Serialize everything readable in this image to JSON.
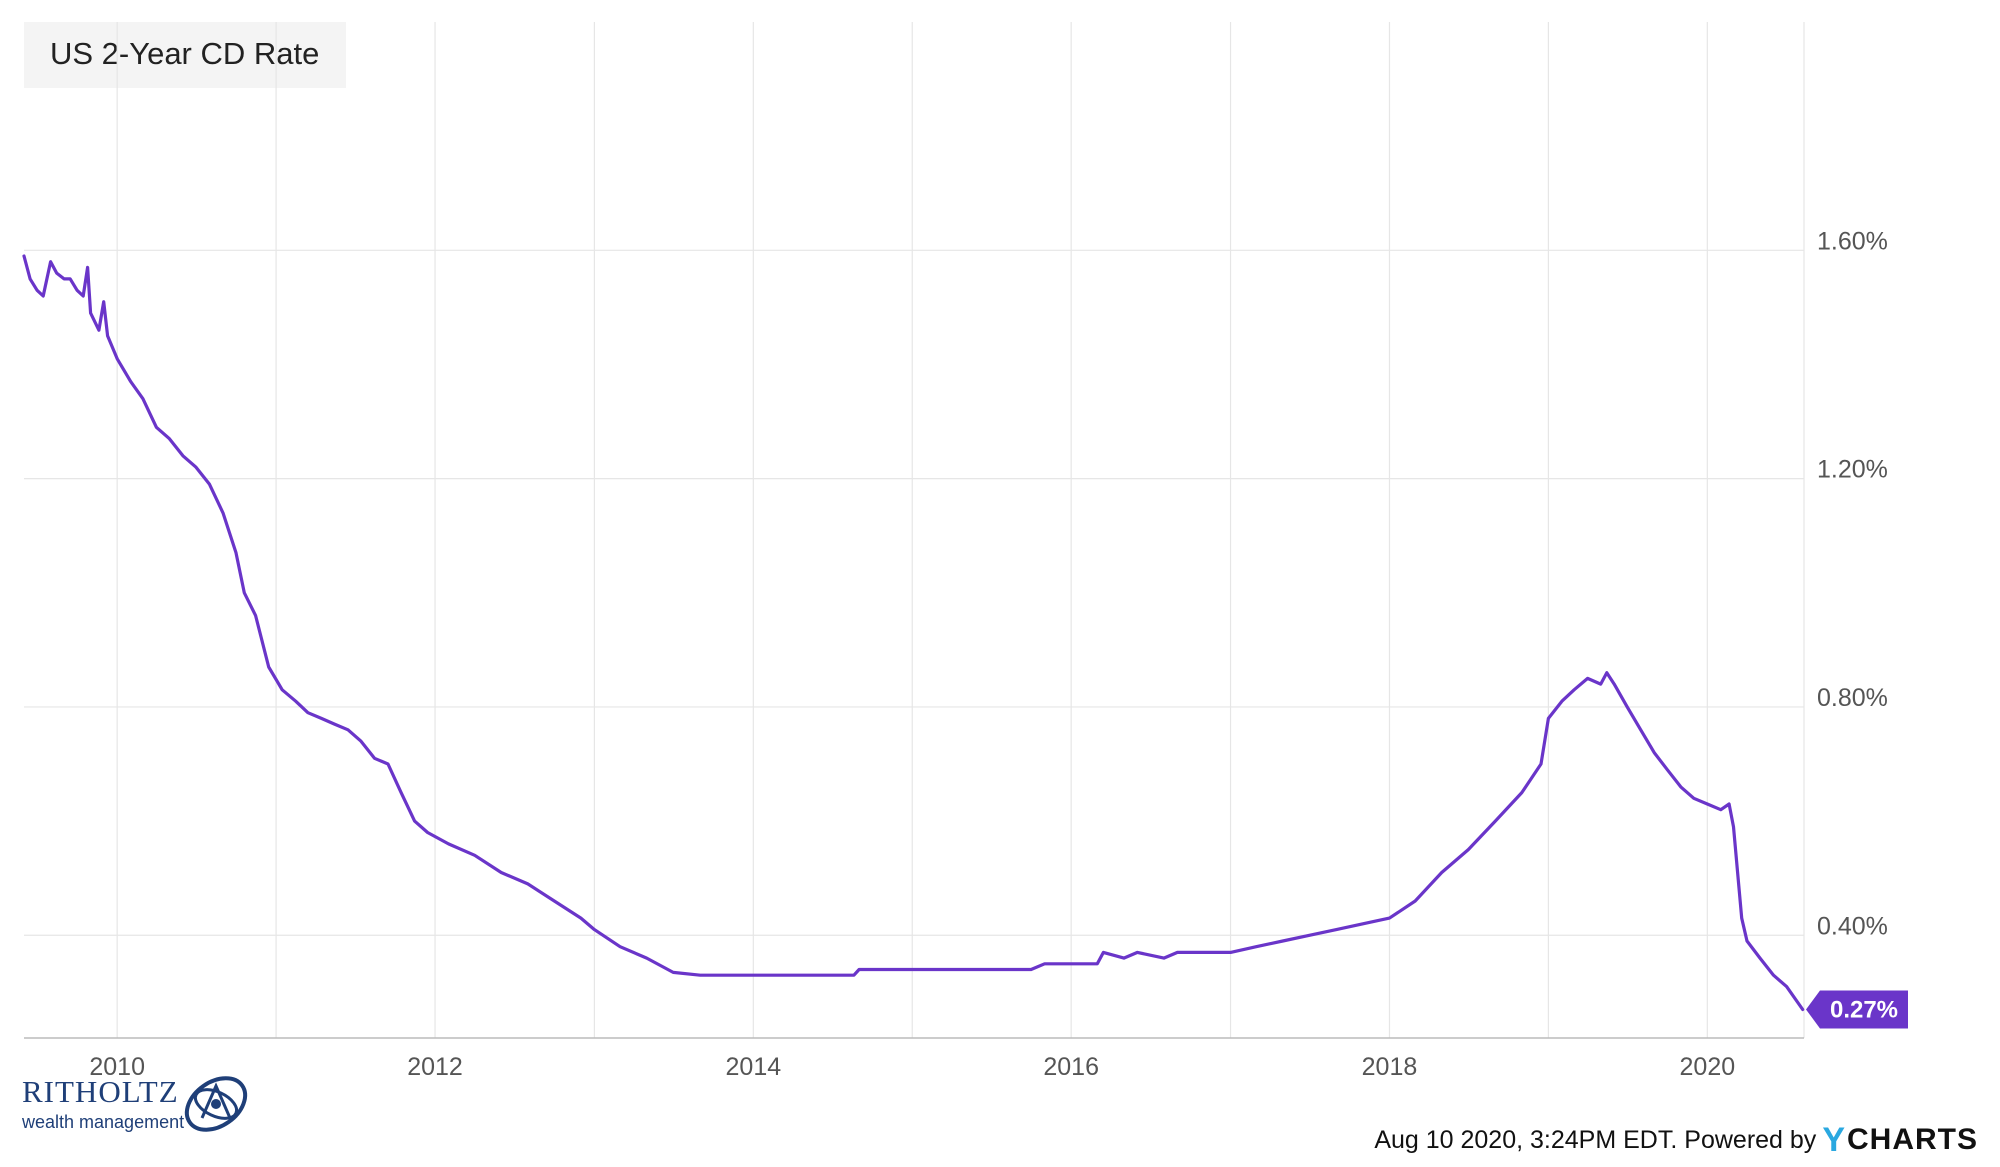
{
  "chart_data": {
    "type": "line",
    "title": "US 2-Year CD Rate",
    "series": [
      {
        "color": "#6a35c9",
        "points": [
          [
            "2009-06-01",
            1.59
          ],
          [
            "2009-06-15",
            1.55
          ],
          [
            "2009-07-01",
            1.53
          ],
          [
            "2009-07-15",
            1.52
          ],
          [
            "2009-08-01",
            1.58
          ],
          [
            "2009-08-15",
            1.56
          ],
          [
            "2009-09-01",
            1.55
          ],
          [
            "2009-09-15",
            1.55
          ],
          [
            "2009-10-01",
            1.53
          ],
          [
            "2009-10-15",
            1.52
          ],
          [
            "2009-10-25",
            1.57
          ],
          [
            "2009-11-01",
            1.49
          ],
          [
            "2009-11-20",
            1.46
          ],
          [
            "2009-12-01",
            1.51
          ],
          [
            "2009-12-10",
            1.45
          ],
          [
            "2010-01-01",
            1.41
          ],
          [
            "2010-02-01",
            1.37
          ],
          [
            "2010-03-01",
            1.34
          ],
          [
            "2010-04-01",
            1.29
          ],
          [
            "2010-05-01",
            1.27
          ],
          [
            "2010-06-01",
            1.24
          ],
          [
            "2010-07-01",
            1.22
          ],
          [
            "2010-08-01",
            1.19
          ],
          [
            "2010-09-01",
            1.14
          ],
          [
            "2010-10-01",
            1.07
          ],
          [
            "2010-10-20",
            1.0
          ],
          [
            "2010-11-15",
            0.96
          ],
          [
            "2010-12-15",
            0.87
          ],
          [
            "2011-01-15",
            0.83
          ],
          [
            "2011-02-15",
            0.81
          ],
          [
            "2011-03-15",
            0.79
          ],
          [
            "2011-04-15",
            0.78
          ],
          [
            "2011-05-15",
            0.77
          ],
          [
            "2011-06-15",
            0.76
          ],
          [
            "2011-07-15",
            0.74
          ],
          [
            "2011-08-15",
            0.71
          ],
          [
            "2011-09-15",
            0.7
          ],
          [
            "2011-10-15",
            0.65
          ],
          [
            "2011-11-15",
            0.6
          ],
          [
            "2011-12-15",
            0.58
          ],
          [
            "2012-02-01",
            0.56
          ],
          [
            "2012-04-01",
            0.54
          ],
          [
            "2012-06-01",
            0.51
          ],
          [
            "2012-08-01",
            0.49
          ],
          [
            "2012-10-01",
            0.46
          ],
          [
            "2012-12-01",
            0.43
          ],
          [
            "2013-01-01",
            0.41
          ],
          [
            "2013-03-01",
            0.38
          ],
          [
            "2013-05-01",
            0.36
          ],
          [
            "2013-07-01",
            0.335
          ],
          [
            "2013-09-01",
            0.33
          ],
          [
            "2014-06-01",
            0.33
          ],
          [
            "2014-08-20",
            0.33
          ],
          [
            "2014-09-01",
            0.34
          ],
          [
            "2015-01-01",
            0.34
          ],
          [
            "2015-06-01",
            0.34
          ],
          [
            "2015-10-01",
            0.34
          ],
          [
            "2015-11-01",
            0.35
          ],
          [
            "2016-03-01",
            0.35
          ],
          [
            "2016-03-15",
            0.37
          ],
          [
            "2016-05-01",
            0.36
          ],
          [
            "2016-06-01",
            0.37
          ],
          [
            "2016-08-01",
            0.36
          ],
          [
            "2016-09-01",
            0.37
          ],
          [
            "2017-01-01",
            0.37
          ],
          [
            "2017-03-01",
            0.38
          ],
          [
            "2017-05-01",
            0.39
          ],
          [
            "2017-07-01",
            0.4
          ],
          [
            "2017-09-01",
            0.41
          ],
          [
            "2017-11-01",
            0.42
          ],
          [
            "2018-01-01",
            0.43
          ],
          [
            "2018-03-01",
            0.46
          ],
          [
            "2018-05-01",
            0.51
          ],
          [
            "2018-07-01",
            0.55
          ],
          [
            "2018-09-01",
            0.6
          ],
          [
            "2018-11-01",
            0.65
          ],
          [
            "2018-12-15",
            0.7
          ],
          [
            "2019-01-01",
            0.78
          ],
          [
            "2019-02-01",
            0.81
          ],
          [
            "2019-03-01",
            0.83
          ],
          [
            "2019-04-01",
            0.85
          ],
          [
            "2019-05-01",
            0.84
          ],
          [
            "2019-05-15",
            0.86
          ],
          [
            "2019-06-01",
            0.84
          ],
          [
            "2019-07-01",
            0.8
          ],
          [
            "2019-08-01",
            0.76
          ],
          [
            "2019-09-01",
            0.72
          ],
          [
            "2019-10-01",
            0.69
          ],
          [
            "2019-11-01",
            0.66
          ],
          [
            "2019-12-01",
            0.64
          ],
          [
            "2020-01-01",
            0.63
          ],
          [
            "2020-02-01",
            0.62
          ],
          [
            "2020-02-20",
            0.63
          ],
          [
            "2020-03-01",
            0.59
          ],
          [
            "2020-03-20",
            0.43
          ],
          [
            "2020-04-01",
            0.39
          ],
          [
            "2020-05-01",
            0.36
          ],
          [
            "2020-06-01",
            0.33
          ],
          [
            "2020-07-01",
            0.31
          ],
          [
            "2020-08-07",
            0.27
          ]
        ]
      }
    ],
    "x_ticks": [
      {
        "value": "2010-01-01",
        "label": "2010"
      },
      {
        "value": "2012-01-01",
        "label": "2012"
      },
      {
        "value": "2014-01-01",
        "label": "2014"
      },
      {
        "value": "2016-01-01",
        "label": "2016"
      },
      {
        "value": "2018-01-01",
        "label": "2018"
      },
      {
        "value": "2020-01-01",
        "label": "2020"
      }
    ],
    "y_ticks": [
      {
        "value": 0.4,
        "label": "0.40%"
      },
      {
        "value": 0.8,
        "label": "0.80%"
      },
      {
        "value": 1.2,
        "label": "1.20%"
      },
      {
        "value": 1.6,
        "label": "1.60%"
      }
    ],
    "xlim": [
      "2009-06-01",
      "2020-08-10"
    ],
    "ylim": [
      0.22,
      2.0
    ],
    "grid": true,
    "y_axis_side": "right",
    "last_value": 0.27,
    "last_value_label": "0.27%"
  },
  "footer": {
    "timestamp": "Aug 10 2020, 3:24PM EDT.",
    "powered_by": "Powered by",
    "brand_y": "Y",
    "brand_rest": "CHARTS"
  },
  "logo": {
    "name": "RITHOLTZ",
    "tagline": "wealth management"
  }
}
